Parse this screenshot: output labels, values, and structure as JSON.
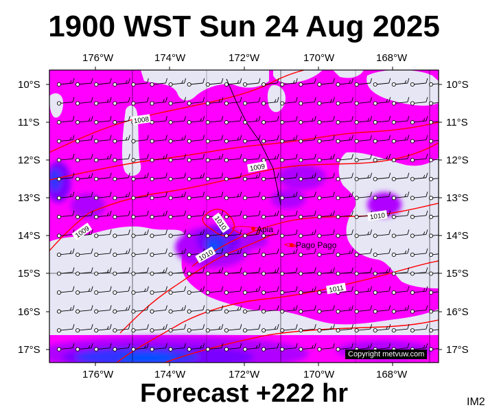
{
  "title": "1900 WST Sun 24 Aug 2025",
  "footer": "Forecast +222 hr",
  "corner_label": "IM2",
  "copyright": "Copyright metvuw.com",
  "colors": {
    "background_light": "#e6e6f5",
    "precip_magenta": "#ff00ff",
    "precip_purple": "#b000ff",
    "precip_violet": "#7a00ff",
    "precip_blue": "#3030ff",
    "precip_deep_blue": "#0050ff",
    "isobar": "#ff0000",
    "track": "#000000"
  },
  "longitude_labels": [
    "176°W",
    "174°W",
    "172°W",
    "170°W",
    "168°W"
  ],
  "latitude_labels": [
    "10°S",
    "11°S",
    "12°S",
    "13°S",
    "14°S",
    "15°S",
    "16°S",
    "17°S"
  ],
  "places": [
    {
      "name": "Apia",
      "lon": -171.75,
      "lat": -13.83
    },
    {
      "name": "Pago Pago",
      "lon": -170.7,
      "lat": -14.28
    }
  ],
  "isobar_labels": [
    "1008",
    "1009",
    "1009",
    "1010",
    "1010",
    "1010",
    "1011"
  ]
}
